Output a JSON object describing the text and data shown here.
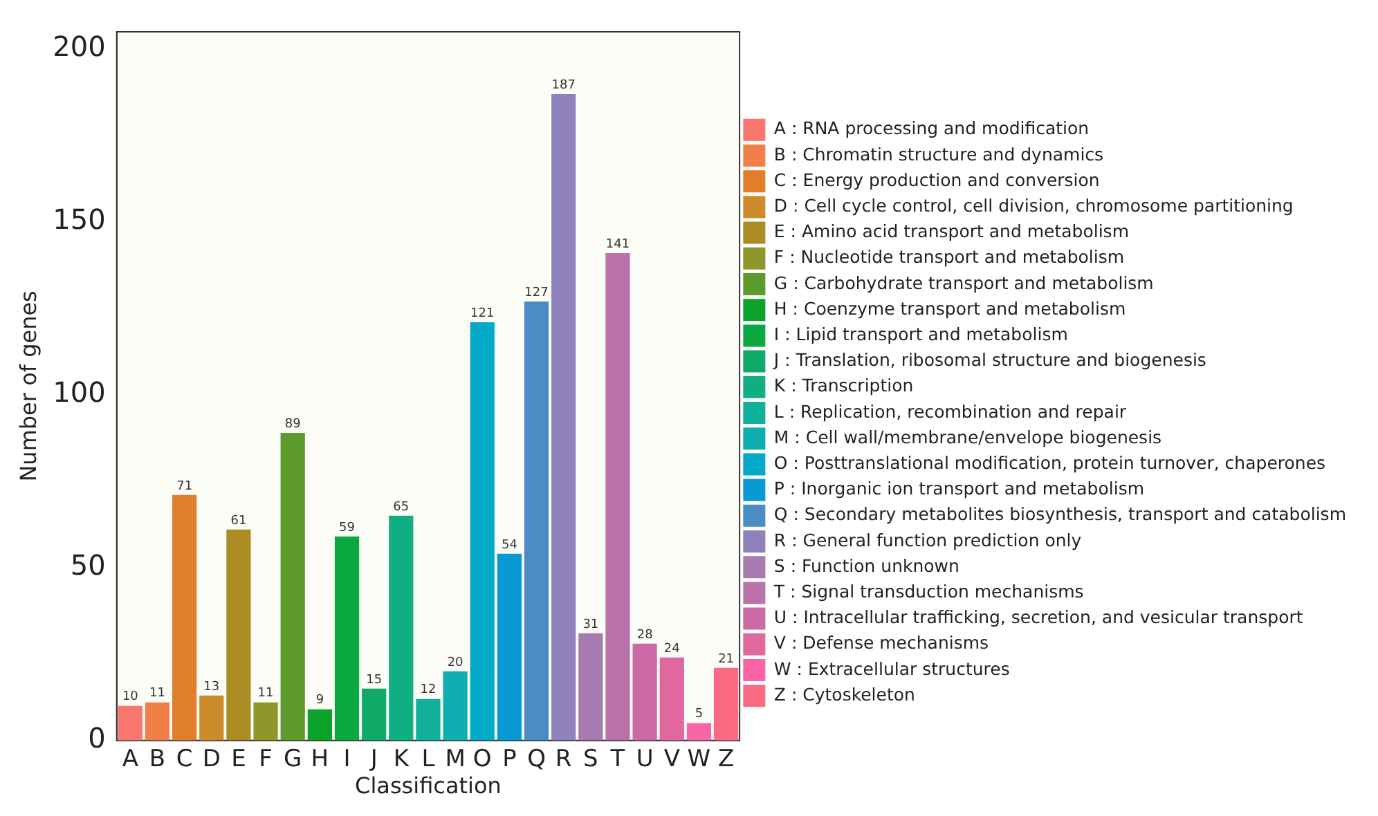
{
  "chart_data": {
    "type": "bar",
    "xlabel": "Classification",
    "ylabel": "Number of genes",
    "categories": [
      "A",
      "B",
      "C",
      "D",
      "E",
      "F",
      "G",
      "H",
      "I",
      "J",
      "K",
      "L",
      "M",
      "O",
      "P",
      "Q",
      "R",
      "S",
      "T",
      "U",
      "V",
      "W",
      "Z"
    ],
    "ylim": [
      0,
      205
    ],
    "yticks": [
      0,
      50,
      100,
      150,
      200
    ],
    "grid": false,
    "legend": "right",
    "data_labels": true,
    "series": [
      {
        "name": "A : RNA processing and modification",
        "color": "#f8766d",
        "values": [
          10,
          null,
          null,
          null,
          null,
          null,
          null,
          null,
          null,
          null,
          null,
          null,
          null,
          null,
          null,
          null,
          null,
          null,
          null,
          null,
          null,
          null,
          null
        ]
      },
      {
        "name": "B : Chromatin structure and dynamics",
        "color": "#f07f48",
        "values": [
          null,
          11,
          null,
          null,
          null,
          null,
          null,
          null,
          null,
          null,
          null,
          null,
          null,
          null,
          null,
          null,
          null,
          null,
          null,
          null,
          null,
          null,
          null
        ]
      },
      {
        "name": "C : Energy production and conversion",
        "color": "#e07e2a",
        "values": [
          null,
          null,
          71,
          null,
          null,
          null,
          null,
          null,
          null,
          null,
          null,
          null,
          null,
          null,
          null,
          null,
          null,
          null,
          null,
          null,
          null,
          null,
          null
        ]
      },
      {
        "name": "D : Cell cycle control, cell division, chromosome partitioning",
        "color": "#cd8b2c",
        "values": [
          null,
          null,
          null,
          13,
          null,
          null,
          null,
          null,
          null,
          null,
          null,
          null,
          null,
          null,
          null,
          null,
          null,
          null,
          null,
          null,
          null,
          null,
          null
        ]
      },
      {
        "name": "E : Amino acid transport and metabolism",
        "color": "#ab8c25",
        "values": [
          null,
          null,
          null,
          null,
          61,
          null,
          null,
          null,
          null,
          null,
          null,
          null,
          null,
          null,
          null,
          null,
          null,
          null,
          null,
          null,
          null,
          null,
          null
        ]
      },
      {
        "name": "F : Nucleotide transport and metabolism",
        "color": "#8f962a",
        "values": [
          null,
          null,
          null,
          null,
          null,
          11,
          null,
          null,
          null,
          null,
          null,
          null,
          null,
          null,
          null,
          null,
          null,
          null,
          null,
          null,
          null,
          null,
          null
        ]
      },
      {
        "name": "G : Carbohydrate transport and metabolism",
        "color": "#5c9a2c",
        "values": [
          null,
          null,
          null,
          null,
          null,
          null,
          89,
          null,
          null,
          null,
          null,
          null,
          null,
          null,
          null,
          null,
          null,
          null,
          null,
          null,
          null,
          null,
          null
        ]
      },
      {
        "name": "H : Coenzyme transport and metabolism",
        "color": "#0ba32a",
        "values": [
          null,
          null,
          null,
          null,
          null,
          null,
          null,
          9,
          null,
          null,
          null,
          null,
          null,
          null,
          null,
          null,
          null,
          null,
          null,
          null,
          null,
          null,
          null
        ]
      },
      {
        "name": "I : Lipid transport and metabolism",
        "color": "#0aa840",
        "values": [
          null,
          null,
          null,
          null,
          null,
          null,
          null,
          null,
          59,
          null,
          null,
          null,
          null,
          null,
          null,
          null,
          null,
          null,
          null,
          null,
          null,
          null,
          null
        ]
      },
      {
        "name": "J : Translation, ribosomal structure and biogenesis",
        "color": "#10aa68",
        "values": [
          null,
          null,
          null,
          null,
          null,
          null,
          null,
          null,
          null,
          15,
          null,
          null,
          null,
          null,
          null,
          null,
          null,
          null,
          null,
          null,
          null,
          null,
          null
        ]
      },
      {
        "name": "K : Transcription",
        "color": "#0fae83",
        "values": [
          null,
          null,
          null,
          null,
          null,
          null,
          null,
          null,
          null,
          null,
          65,
          null,
          null,
          null,
          null,
          null,
          null,
          null,
          null,
          null,
          null,
          null,
          null
        ]
      },
      {
        "name": "L : Replication, recombination and repair",
        "color": "#11b09b",
        "values": [
          null,
          null,
          null,
          null,
          null,
          null,
          null,
          null,
          null,
          null,
          null,
          12,
          null,
          null,
          null,
          null,
          null,
          null,
          null,
          null,
          null,
          null,
          null
        ]
      },
      {
        "name": "M : Cell wall/membrane/envelope biogenesis",
        "color": "#0eaeb0",
        "values": [
          null,
          null,
          null,
          null,
          null,
          null,
          null,
          null,
          null,
          null,
          null,
          null,
          20,
          null,
          null,
          null,
          null,
          null,
          null,
          null,
          null,
          null,
          null
        ]
      },
      {
        "name": "O : Posttranslational modification, protein turnover, chaperones",
        "color": "#03a9c8",
        "values": [
          null,
          null,
          null,
          null,
          null,
          null,
          null,
          null,
          null,
          null,
          null,
          null,
          null,
          121,
          null,
          null,
          null,
          null,
          null,
          null,
          null,
          null,
          null
        ]
      },
      {
        "name": "P : Inorganic ion transport and metabolism",
        "color": "#0699d4",
        "values": [
          null,
          null,
          null,
          null,
          null,
          null,
          null,
          null,
          null,
          null,
          null,
          null,
          null,
          null,
          54,
          null,
          null,
          null,
          null,
          null,
          null,
          null,
          null
        ]
      },
      {
        "name": "Q : Secondary metabolites biosynthesis, transport and catabolism",
        "color": "#4a8cc4",
        "values": [
          null,
          null,
          null,
          null,
          null,
          null,
          null,
          null,
          null,
          null,
          null,
          null,
          null,
          null,
          null,
          127,
          null,
          null,
          null,
          null,
          null,
          null,
          null
        ]
      },
      {
        "name": "R : General function prediction only",
        "color": "#8f82bc",
        "values": [
          null,
          null,
          null,
          null,
          null,
          null,
          null,
          null,
          null,
          null,
          null,
          null,
          null,
          null,
          null,
          null,
          187,
          null,
          null,
          null,
          null,
          null,
          null
        ]
      },
      {
        "name": "S : Function unknown",
        "color": "#a77bb0",
        "values": [
          null,
          null,
          null,
          null,
          null,
          null,
          null,
          null,
          null,
          null,
          null,
          null,
          null,
          null,
          null,
          null,
          null,
          31,
          null,
          null,
          null,
          null,
          null
        ]
      },
      {
        "name": "T : Signal transduction mechanisms",
        "color": "#ba73aa",
        "values": [
          null,
          null,
          null,
          null,
          null,
          null,
          null,
          null,
          null,
          null,
          null,
          null,
          null,
          null,
          null,
          null,
          null,
          null,
          141,
          null,
          null,
          null,
          null
        ]
      },
      {
        "name": "U : Intracellular trafficking, secretion, and vesicular transport",
        "color": "#cc6aa6",
        "values": [
          null,
          null,
          null,
          null,
          null,
          null,
          null,
          null,
          null,
          null,
          null,
          null,
          null,
          null,
          null,
          null,
          null,
          null,
          null,
          28,
          null,
          null,
          null
        ]
      },
      {
        "name": "V : Defense mechanisms",
        "color": "#e067a0",
        "values": [
          null,
          null,
          null,
          null,
          null,
          null,
          null,
          null,
          null,
          null,
          null,
          null,
          null,
          null,
          null,
          null,
          null,
          null,
          null,
          null,
          24,
          null,
          null
        ]
      },
      {
        "name": "W : Extracellular structures",
        "color": "#f964a6",
        "values": [
          null,
          null,
          null,
          null,
          null,
          null,
          null,
          null,
          null,
          null,
          null,
          null,
          null,
          null,
          null,
          null,
          null,
          null,
          null,
          null,
          null,
          5,
          null
        ]
      },
      {
        "name": "Z : Cytoskeleton",
        "color": "#fb6a83",
        "values": [
          null,
          null,
          null,
          null,
          null,
          null,
          null,
          null,
          null,
          null,
          null,
          null,
          null,
          null,
          null,
          null,
          null,
          null,
          null,
          null,
          null,
          null,
          21
        ]
      }
    ]
  }
}
